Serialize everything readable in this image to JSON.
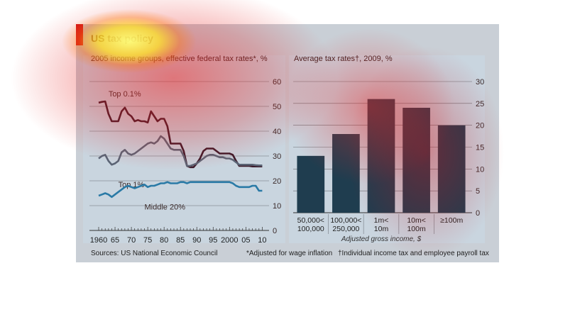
{
  "title": "US tax policy",
  "footer": {
    "source": "Sources: US National Economic Council",
    "note1": "*Adjusted for wage inflation",
    "note2": "†Individual income tax and employee payroll tax"
  },
  "chart_data": [
    {
      "type": "line",
      "subtitle": "2005 income groups, effective federal tax rates*, %",
      "y_axis": {
        "range": [
          0,
          60
        ],
        "ticks": [
          "0",
          "10",
          "20",
          "30",
          "40",
          "50",
          "60"
        ],
        "position": "right"
      },
      "x_axis": {
        "range": [
          1960,
          2011
        ],
        "ticks": [
          1960,
          1965,
          1970,
          1975,
          1980,
          1985,
          1990,
          1995,
          2000,
          2005,
          2010
        ],
        "tick_labels": [
          "1960",
          "65",
          "70",
          "75",
          "80",
          "85",
          "90",
          "95",
          "2000",
          "05",
          "10"
        ]
      },
      "grid": true,
      "series": [
        {
          "name": "Top 0.1%",
          "color": "#3b1a2a",
          "points": [
            [
              1960,
              51.5
            ],
            [
              1961,
              51.8
            ],
            [
              1962,
              52
            ],
            [
              1963,
              47
            ],
            [
              1964,
              44
            ],
            [
              1965,
              44
            ],
            [
              1966,
              44
            ],
            [
              1967,
              48
            ],
            [
              1968,
              49.5
            ],
            [
              1969,
              47
            ],
            [
              1970,
              46
            ],
            [
              1971,
              44
            ],
            [
              1972,
              44.5
            ],
            [
              1973,
              44
            ],
            [
              1974,
              44
            ],
            [
              1975,
              43.5
            ],
            [
              1976,
              48
            ],
            [
              1977,
              46
            ],
            [
              1978,
              44
            ],
            [
              1979,
              45
            ],
            [
              1980,
              45
            ],
            [
              1981,
              42
            ],
            [
              1982,
              35
            ],
            [
              1983,
              35
            ],
            [
              1984,
              35
            ],
            [
              1985,
              35
            ],
            [
              1986,
              32
            ],
            [
              1987,
              26
            ],
            [
              1988,
              25.5
            ],
            [
              1989,
              25.5
            ],
            [
              1990,
              27
            ],
            [
              1991,
              29
            ],
            [
              1992,
              32
            ],
            [
              1993,
              33
            ],
            [
              1994,
              33
            ],
            [
              1995,
              33
            ],
            [
              1996,
              32
            ],
            [
              1997,
              31
            ],
            [
              1998,
              31
            ],
            [
              1999,
              31
            ],
            [
              2000,
              31
            ],
            [
              2001,
              30.5
            ],
            [
              2002,
              28
            ],
            [
              2003,
              26
            ],
            [
              2004,
              26
            ],
            [
              2005,
              26
            ],
            [
              2006,
              26
            ],
            [
              2007,
              25.8
            ],
            [
              2008,
              25.8
            ],
            [
              2009,
              25.8
            ],
            [
              2010,
              25.8
            ]
          ]
        },
        {
          "name": "Top 1%",
          "color": "#5a6475",
          "points": [
            [
              1960,
              29
            ],
            [
              1961,
              30
            ],
            [
              1962,
              30.5
            ],
            [
              1963,
              28
            ],
            [
              1964,
              26.5
            ],
            [
              1965,
              27
            ],
            [
              1966,
              28
            ],
            [
              1967,
              31.5
            ],
            [
              1968,
              32.5
            ],
            [
              1969,
              31
            ],
            [
              1970,
              30.5
            ],
            [
              1971,
              31
            ],
            [
              1972,
              32
            ],
            [
              1973,
              33
            ],
            [
              1974,
              34
            ],
            [
              1975,
              35
            ],
            [
              1976,
              35.5
            ],
            [
              1977,
              35
            ],
            [
              1978,
              36
            ],
            [
              1979,
              38
            ],
            [
              1980,
              37
            ],
            [
              1981,
              35
            ],
            [
              1982,
              33
            ],
            [
              1983,
              32.5
            ],
            [
              1984,
              32.5
            ],
            [
              1985,
              32.5
            ],
            [
              1986,
              30
            ],
            [
              1987,
              26
            ],
            [
              1988,
              26
            ],
            [
              1989,
              26.5
            ],
            [
              1990,
              27
            ],
            [
              1991,
              28
            ],
            [
              1992,
              29
            ],
            [
              1993,
              30
            ],
            [
              1994,
              30.5
            ],
            [
              1995,
              30.5
            ],
            [
              1996,
              30
            ],
            [
              1997,
              29.5
            ],
            [
              1998,
              29.5
            ],
            [
              1999,
              29
            ],
            [
              2000,
              29
            ],
            [
              2001,
              28.5
            ],
            [
              2002,
              27.5
            ],
            [
              2003,
              26.5
            ],
            [
              2004,
              26.5
            ],
            [
              2005,
              26.5
            ],
            [
              2006,
              26.5
            ],
            [
              2007,
              26.5
            ],
            [
              2008,
              26.3
            ],
            [
              2009,
              26.2
            ],
            [
              2010,
              26.2
            ]
          ]
        },
        {
          "name": "Middle 20%",
          "color": "#2a7aa6",
          "points": [
            [
              1960,
              14
            ],
            [
              1961,
              14.5
            ],
            [
              1962,
              15
            ],
            [
              1963,
              14.5
            ],
            [
              1964,
              13.5
            ],
            [
              1965,
              14.5
            ],
            [
              1966,
              15.5
            ],
            [
              1967,
              16.5
            ],
            [
              1968,
              17.5
            ],
            [
              1969,
              18
            ],
            [
              1970,
              17.5
            ],
            [
              1971,
              17
            ],
            [
              1972,
              17.5
            ],
            [
              1973,
              18
            ],
            [
              1974,
              18.5
            ],
            [
              1975,
              17.5
            ],
            [
              1976,
              18
            ],
            [
              1977,
              18
            ],
            [
              1978,
              18.5
            ],
            [
              1979,
              19
            ],
            [
              1980,
              19
            ],
            [
              1981,
              19.5
            ],
            [
              1982,
              19
            ],
            [
              1983,
              19
            ],
            [
              1984,
              19
            ],
            [
              1985,
              19.5
            ],
            [
              1986,
              19.5
            ],
            [
              1987,
              19
            ],
            [
              1988,
              19.5
            ],
            [
              1989,
              19.5
            ],
            [
              1990,
              19.5
            ],
            [
              1991,
              19.5
            ],
            [
              1992,
              19.5
            ],
            [
              1993,
              19.5
            ],
            [
              1994,
              19.5
            ],
            [
              1995,
              19.5
            ],
            [
              1996,
              19.5
            ],
            [
              1997,
              19.5
            ],
            [
              1998,
              19.5
            ],
            [
              1999,
              19.5
            ],
            [
              2000,
              19.5
            ],
            [
              2001,
              19
            ],
            [
              2002,
              18
            ],
            [
              2003,
              17.5
            ],
            [
              2004,
              17.5
            ],
            [
              2005,
              17.5
            ],
            [
              2006,
              17.5
            ],
            [
              2007,
              18
            ],
            [
              2008,
              18
            ],
            [
              2009,
              16
            ],
            [
              2010,
              16
            ]
          ]
        }
      ]
    },
    {
      "type": "bar",
      "subtitle": "Average tax rates†, 2009, %",
      "categories": [
        [
          "50,000<",
          "100,000"
        ],
        [
          "100,000<",
          "250,000"
        ],
        [
          "1m<",
          "10m"
        ],
        [
          "10m<",
          "100m"
        ],
        [
          "≥100m"
        ]
      ],
      "values": [
        13,
        18,
        26,
        24,
        20
      ],
      "color": "#1f3d4f",
      "xlabel": "Adjusted gross income, $",
      "y_axis": {
        "range": [
          0,
          30
        ],
        "ticks": [
          "0",
          "5",
          "10",
          "15",
          "20",
          "25",
          "30"
        ],
        "position": "right"
      },
      "grid": true
    }
  ]
}
